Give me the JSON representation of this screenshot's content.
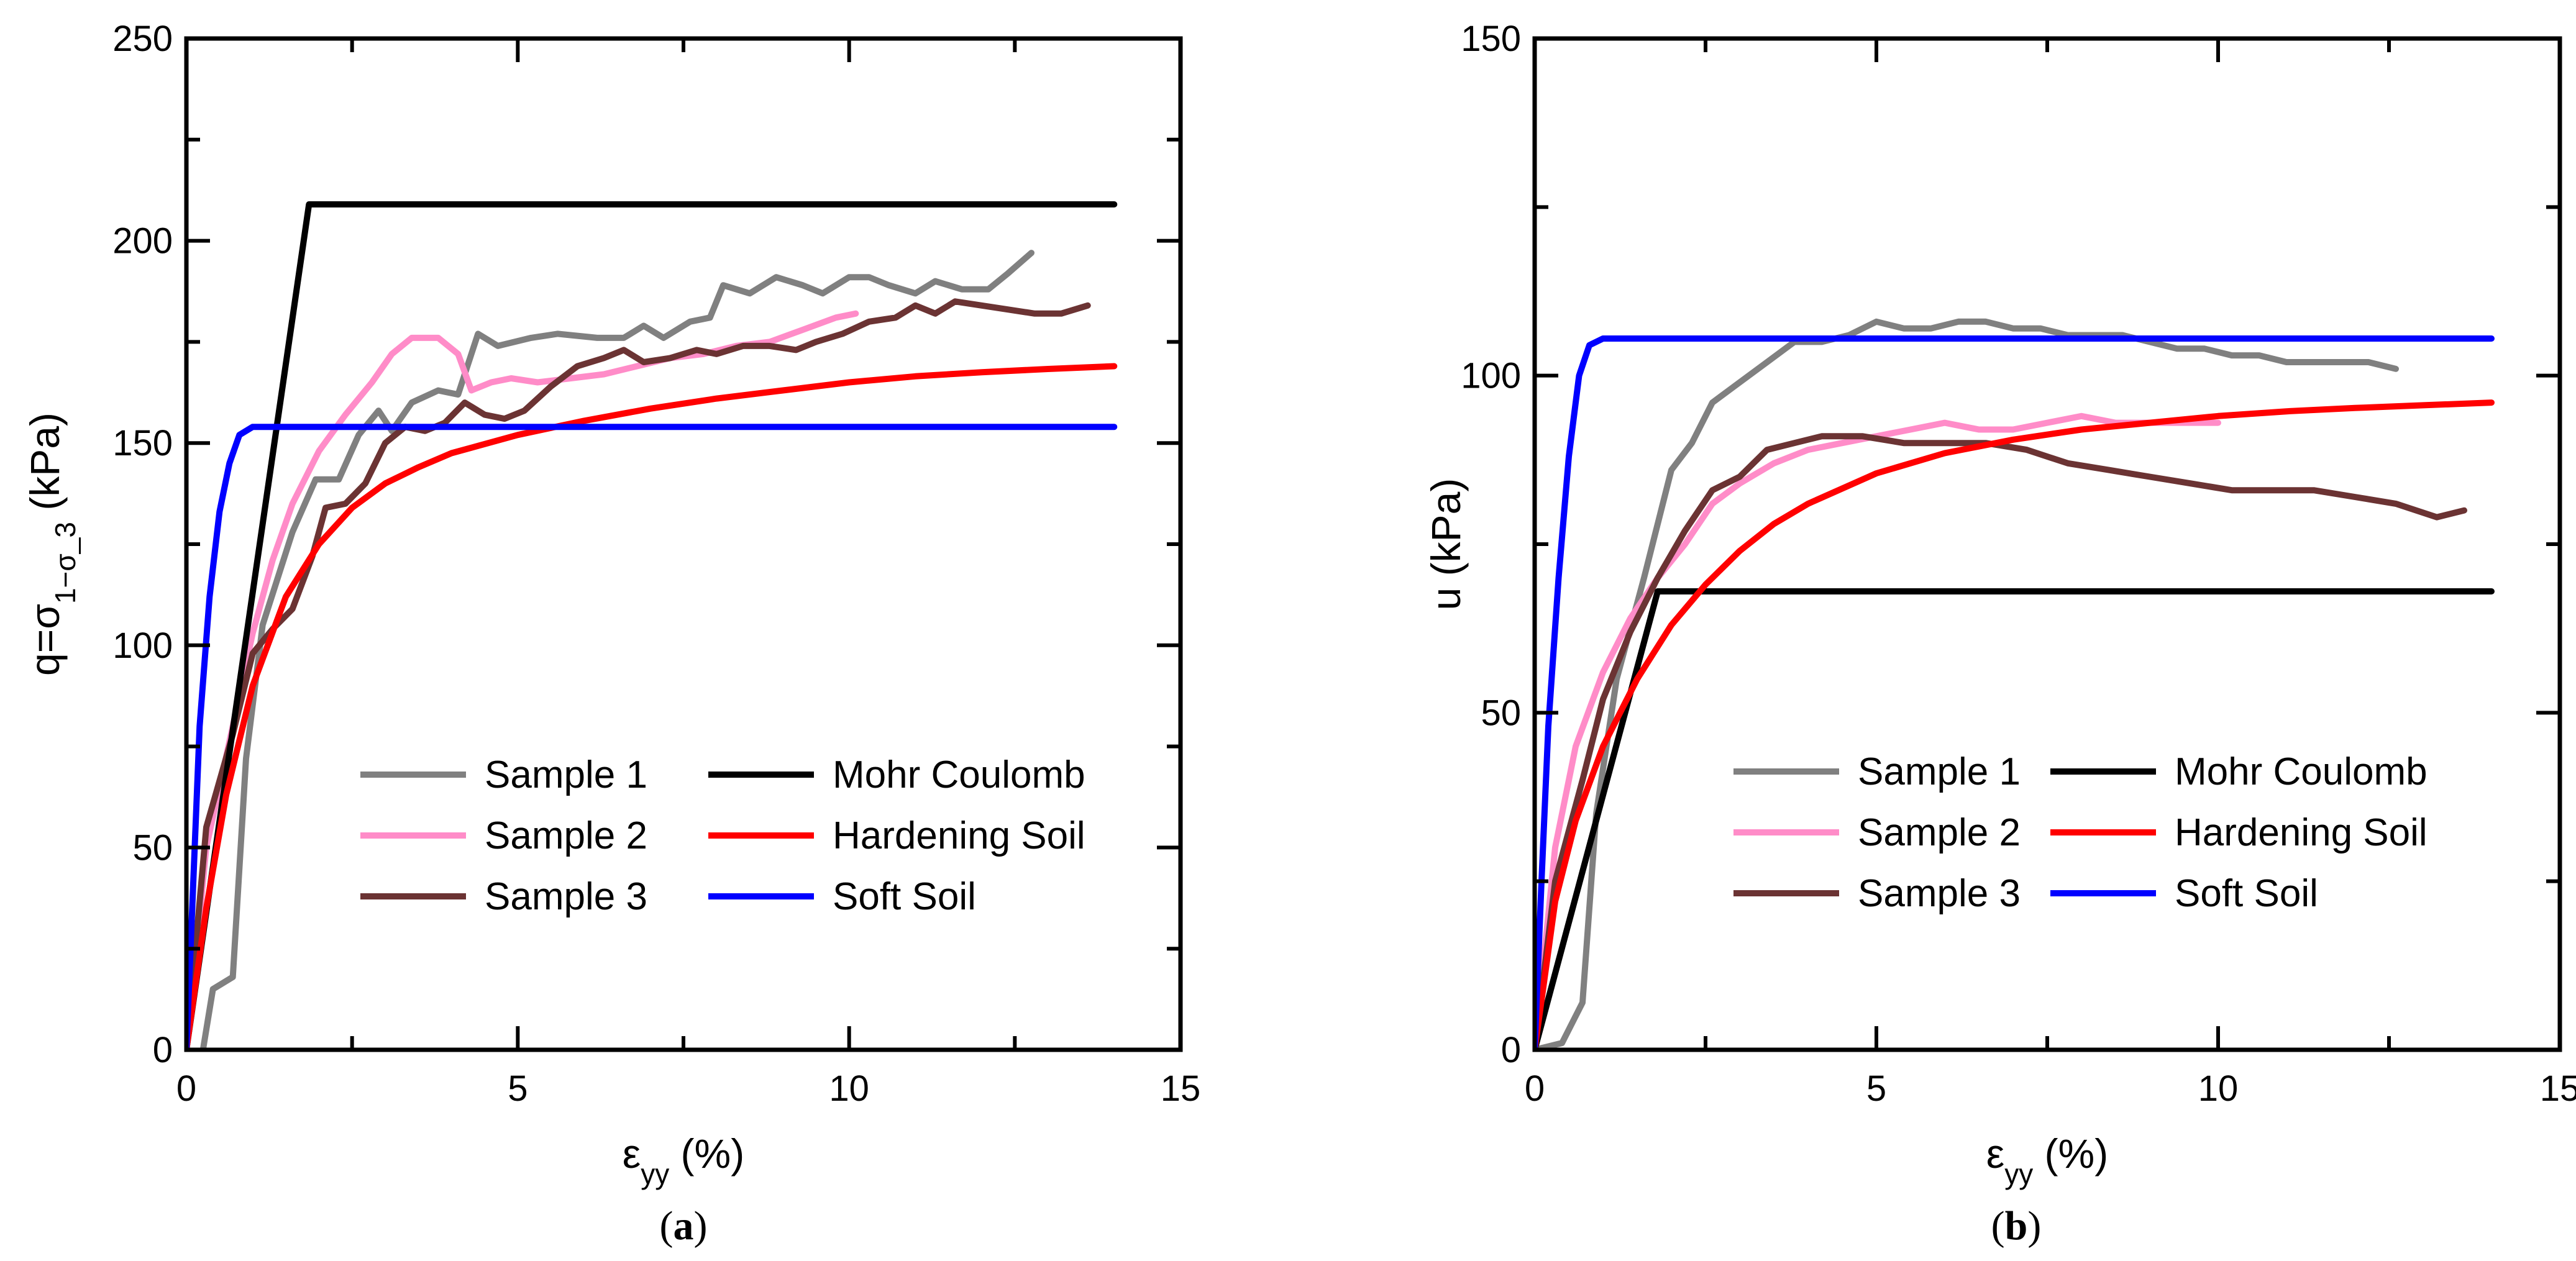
{
  "chart_data": [
    {
      "type": "line",
      "panel_label": "(a)",
      "panel_letter": "a",
      "xlabel": "ε_yy (%)",
      "ylabel": "q=σ_1−σ_3 (kPa)",
      "xlim": [
        0,
        15
      ],
      "ylim": [
        0,
        250
      ],
      "xticks": [
        0,
        5,
        10,
        15
      ],
      "yticks": [
        0,
        50,
        100,
        150,
        200,
        250
      ],
      "legend": {
        "position": "bottom-right",
        "columns": 2
      },
      "series": [
        {
          "name": "Sample 1",
          "color": "#808080",
          "points": [
            [
              0,
              -5
            ],
            [
              0.25,
              0
            ],
            [
              0.4,
              15
            ],
            [
              0.7,
              18
            ],
            [
              0.9,
              72
            ],
            [
              1.15,
              105
            ],
            [
              1.6,
              128
            ],
            [
              1.95,
              141
            ],
            [
              2.3,
              141
            ],
            [
              2.6,
              152
            ],
            [
              2.9,
              158
            ],
            [
              3.1,
              153
            ],
            [
              3.4,
              160
            ],
            [
              3.8,
              163
            ],
            [
              4.1,
              162
            ],
            [
              4.4,
              177
            ],
            [
              4.7,
              174
            ],
            [
              5.2,
              176
            ],
            [
              5.6,
              177
            ],
            [
              6.2,
              176
            ],
            [
              6.6,
              176
            ],
            [
              6.9,
              179
            ],
            [
              7.2,
              176
            ],
            [
              7.6,
              180
            ],
            [
              7.9,
              181
            ],
            [
              8.1,
              189
            ],
            [
              8.5,
              187
            ],
            [
              8.9,
              191
            ],
            [
              9.3,
              189
            ],
            [
              9.6,
              187
            ],
            [
              10.0,
              191
            ],
            [
              10.3,
              191
            ],
            [
              10.6,
              189
            ],
            [
              11.0,
              187
            ],
            [
              11.3,
              190
            ],
            [
              11.7,
              188
            ],
            [
              12.1,
              188
            ],
            [
              12.4,
              192
            ],
            [
              12.75,
              197
            ]
          ]
        },
        {
          "name": "Sample 2",
          "color": "#ff8cc8",
          "points": [
            [
              0,
              0
            ],
            [
              0.3,
              50
            ],
            [
              0.7,
              80
            ],
            [
              1.0,
              103
            ],
            [
              1.3,
              121
            ],
            [
              1.6,
              135
            ],
            [
              2.0,
              148
            ],
            [
              2.4,
              157
            ],
            [
              2.8,
              165
            ],
            [
              3.1,
              172
            ],
            [
              3.4,
              176
            ],
            [
              3.8,
              176
            ],
            [
              4.1,
              172
            ],
            [
              4.3,
              163
            ],
            [
              4.6,
              165
            ],
            [
              4.9,
              166
            ],
            [
              5.3,
              165
            ],
            [
              5.8,
              166
            ],
            [
              6.3,
              167
            ],
            [
              6.8,
              169
            ],
            [
              7.3,
              171
            ],
            [
              7.8,
              172
            ],
            [
              8.3,
              174
            ],
            [
              8.8,
              175
            ],
            [
              9.3,
              178
            ],
            [
              9.8,
              181
            ],
            [
              10.1,
              182
            ]
          ]
        },
        {
          "name": "Sample 3",
          "color": "#6b3333",
          "points": [
            [
              0,
              0
            ],
            [
              0.3,
              55
            ],
            [
              0.7,
              78
            ],
            [
              1.0,
              98
            ],
            [
              1.3,
              104
            ],
            [
              1.6,
              109
            ],
            [
              1.9,
              122
            ],
            [
              2.1,
              134
            ],
            [
              2.4,
              135
            ],
            [
              2.7,
              140
            ],
            [
              3.0,
              150
            ],
            [
              3.3,
              154
            ],
            [
              3.6,
              153
            ],
            [
              3.9,
              155
            ],
            [
              4.2,
              160
            ],
            [
              4.5,
              157
            ],
            [
              4.8,
              156
            ],
            [
              5.1,
              158
            ],
            [
              5.5,
              164
            ],
            [
              5.9,
              169
            ],
            [
              6.3,
              171
            ],
            [
              6.6,
              173
            ],
            [
              6.9,
              170
            ],
            [
              7.3,
              171
            ],
            [
              7.7,
              173
            ],
            [
              8.0,
              172
            ],
            [
              8.4,
              174
            ],
            [
              8.8,
              174
            ],
            [
              9.2,
              173
            ],
            [
              9.5,
              175
            ],
            [
              9.9,
              177
            ],
            [
              10.3,
              180
            ],
            [
              10.7,
              181
            ],
            [
              11.0,
              184
            ],
            [
              11.3,
              182
            ],
            [
              11.6,
              185
            ],
            [
              12.0,
              184
            ],
            [
              12.4,
              183
            ],
            [
              12.8,
              182
            ],
            [
              13.2,
              182
            ],
            [
              13.6,
              184
            ]
          ]
        },
        {
          "name": "Mohr Coulomb",
          "color": "#000000",
          "points": [
            [
              0,
              0
            ],
            [
              1.85,
              209
            ],
            [
              14,
              209
            ]
          ]
        },
        {
          "name": "Hardening Soil",
          "color": "#ff0000",
          "points": [
            [
              0,
              0
            ],
            [
              0.3,
              35
            ],
            [
              0.6,
              63
            ],
            [
              1.0,
              90
            ],
            [
              1.5,
              112
            ],
            [
              2.0,
              125
            ],
            [
              2.5,
              134
            ],
            [
              3.0,
              140
            ],
            [
              3.5,
              144
            ],
            [
              4.0,
              147.5
            ],
            [
              5.0,
              152
            ],
            [
              6.0,
              155.5
            ],
            [
              7.0,
              158.5
            ],
            [
              8.0,
              161
            ],
            [
              9.0,
              163
            ],
            [
              10.0,
              165
            ],
            [
              11.0,
              166.5
            ],
            [
              12.0,
              167.5
            ],
            [
              13.0,
              168.3
            ],
            [
              14.0,
              169
            ]
          ]
        },
        {
          "name": "Soft Soil",
          "color": "#0000ff",
          "points": [
            [
              0,
              0
            ],
            [
              0.1,
              40
            ],
            [
              0.2,
              80
            ],
            [
              0.35,
              112
            ],
            [
              0.5,
              133
            ],
            [
              0.65,
              145
            ],
            [
              0.8,
              152
            ],
            [
              1.0,
              154
            ],
            [
              14,
              154
            ]
          ]
        }
      ]
    },
    {
      "type": "line",
      "panel_label": "(b)",
      "panel_letter": "b",
      "xlabel": "ε_yy (%)",
      "ylabel": "u (kPa)",
      "xlim": [
        0,
        15
      ],
      "ylim": [
        0,
        150
      ],
      "xticks": [
        0,
        5,
        10,
        15
      ],
      "yticks": [
        0,
        50,
        100,
        150
      ],
      "legend": {
        "position": "bottom-right",
        "columns": 2
      },
      "series": [
        {
          "name": "Sample 1",
          "color": "#808080",
          "points": [
            [
              0,
              0
            ],
            [
              0.4,
              1
            ],
            [
              0.7,
              7
            ],
            [
              0.9,
              35
            ],
            [
              1.2,
              55
            ],
            [
              1.6,
              70
            ],
            [
              2.0,
              86
            ],
            [
              2.3,
              90
            ],
            [
              2.6,
              96
            ],
            [
              3.0,
              99
            ],
            [
              3.4,
              102
            ],
            [
              3.8,
              105
            ],
            [
              4.2,
              105
            ],
            [
              4.6,
              106
            ],
            [
              5.0,
              108
            ],
            [
              5.4,
              107
            ],
            [
              5.8,
              107
            ],
            [
              6.2,
              108
            ],
            [
              6.6,
              108
            ],
            [
              7.0,
              107
            ],
            [
              7.4,
              107
            ],
            [
              7.8,
              106
            ],
            [
              8.2,
              106
            ],
            [
              8.6,
              106
            ],
            [
              9.0,
              105
            ],
            [
              9.4,
              104
            ],
            [
              9.8,
              104
            ],
            [
              10.2,
              103
            ],
            [
              10.6,
              103
            ],
            [
              11.0,
              102
            ],
            [
              11.4,
              102
            ],
            [
              11.8,
              102
            ],
            [
              12.2,
              102
            ],
            [
              12.6,
              101
            ]
          ]
        },
        {
          "name": "Sample 2",
          "color": "#ff8cc8",
          "points": [
            [
              0,
              0
            ],
            [
              0.3,
              30
            ],
            [
              0.6,
              45
            ],
            [
              1.0,
              56
            ],
            [
              1.4,
              64
            ],
            [
              1.8,
              70
            ],
            [
              2.2,
              75
            ],
            [
              2.6,
              81
            ],
            [
              3.0,
              84
            ],
            [
              3.5,
              87
            ],
            [
              4.0,
              89
            ],
            [
              4.5,
              90
            ],
            [
              5.0,
              91
            ],
            [
              5.5,
              92
            ],
            [
              6.0,
              93
            ],
            [
              6.5,
              92
            ],
            [
              7.0,
              92
            ],
            [
              7.5,
              93
            ],
            [
              8.0,
              94
            ],
            [
              8.5,
              93
            ],
            [
              9.0,
              93
            ],
            [
              9.5,
              93
            ],
            [
              10.0,
              93
            ]
          ]
        },
        {
          "name": "Sample 3",
          "color": "#6b3333",
          "points": [
            [
              0,
              0
            ],
            [
              0.3,
              25
            ],
            [
              0.7,
              40
            ],
            [
              1.0,
              52
            ],
            [
              1.4,
              62
            ],
            [
              1.8,
              70
            ],
            [
              2.2,
              77
            ],
            [
              2.6,
              83
            ],
            [
              3.0,
              85
            ],
            [
              3.4,
              89
            ],
            [
              3.8,
              90
            ],
            [
              4.2,
              91
            ],
            [
              4.8,
              91
            ],
            [
              5.4,
              90
            ],
            [
              6.0,
              90
            ],
            [
              6.6,
              90
            ],
            [
              7.2,
              89
            ],
            [
              7.8,
              87
            ],
            [
              8.4,
              86
            ],
            [
              9.0,
              85
            ],
            [
              9.6,
              84
            ],
            [
              10.2,
              83
            ],
            [
              10.8,
              83
            ],
            [
              11.4,
              83
            ],
            [
              12.0,
              82
            ],
            [
              12.6,
              81
            ],
            [
              13.2,
              79
            ],
            [
              13.6,
              80
            ]
          ]
        },
        {
          "name": "Mohr Coulomb",
          "color": "#000000",
          "points": [
            [
              0,
              0
            ],
            [
              1.8,
              68
            ],
            [
              14,
              68
            ]
          ]
        },
        {
          "name": "Hardening Soil",
          "color": "#ff0000",
          "points": [
            [
              0,
              0
            ],
            [
              0.3,
              22
            ],
            [
              0.6,
              34
            ],
            [
              1.0,
              45
            ],
            [
              1.5,
              55
            ],
            [
              2.0,
              63
            ],
            [
              2.5,
              69
            ],
            [
              3.0,
              74
            ],
            [
              3.5,
              78
            ],
            [
              4.0,
              81
            ],
            [
              5.0,
              85.5
            ],
            [
              6.0,
              88.5
            ],
            [
              7.0,
              90.5
            ],
            [
              8.0,
              92
            ],
            [
              9.0,
              93
            ],
            [
              10.0,
              94
            ],
            [
              11.0,
              94.7
            ],
            [
              12.0,
              95.2
            ],
            [
              13.0,
              95.6
            ],
            [
              14.0,
              96
            ]
          ]
        },
        {
          "name": "Soft Soil",
          "color": "#0000ff",
          "points": [
            [
              0,
              0
            ],
            [
              0.1,
              25
            ],
            [
              0.2,
              48
            ],
            [
              0.35,
              70
            ],
            [
              0.5,
              88
            ],
            [
              0.65,
              100
            ],
            [
              0.8,
              104.5
            ],
            [
              1.0,
              105.5
            ],
            [
              14,
              105.5
            ]
          ]
        }
      ]
    }
  ]
}
